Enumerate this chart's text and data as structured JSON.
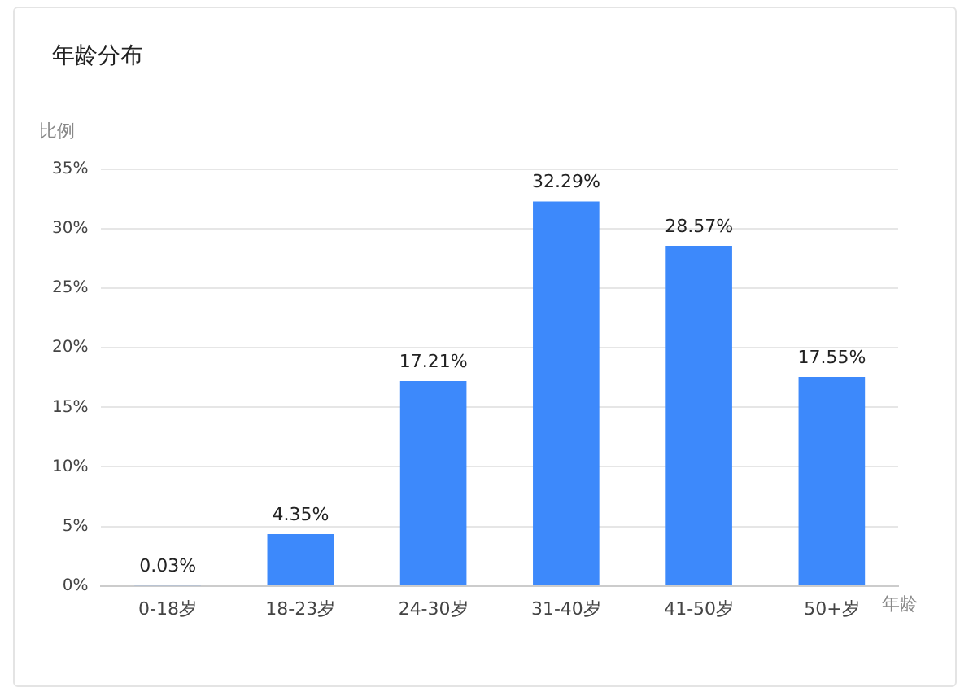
{
  "chart_data": {
    "type": "bar",
    "title": "年龄分布",
    "ylabel": "比例",
    "xlabel": "年龄",
    "categories": [
      "0-18岁",
      "18-23岁",
      "24-30岁",
      "31-40岁",
      "41-50岁",
      "50+岁"
    ],
    "values": [
      0.03,
      4.35,
      17.21,
      32.29,
      28.57,
      17.55
    ],
    "value_labels": [
      "0.03%",
      "4.35%",
      "17.21%",
      "32.29%",
      "28.57%",
      "17.55%"
    ],
    "color": "#3d89fb",
    "ylim": [
      0,
      35
    ],
    "yticks": [
      {
        "value": 0,
        "label": "0%"
      },
      {
        "value": 5,
        "label": "5%"
      },
      {
        "value": 10,
        "label": "10%"
      },
      {
        "value": 15,
        "label": "15%"
      },
      {
        "value": 20,
        "label": "20%"
      },
      {
        "value": 25,
        "label": "25%"
      },
      {
        "value": 30,
        "label": "30%"
      },
      {
        "value": 35,
        "label": "35%"
      }
    ],
    "grid": "y"
  }
}
